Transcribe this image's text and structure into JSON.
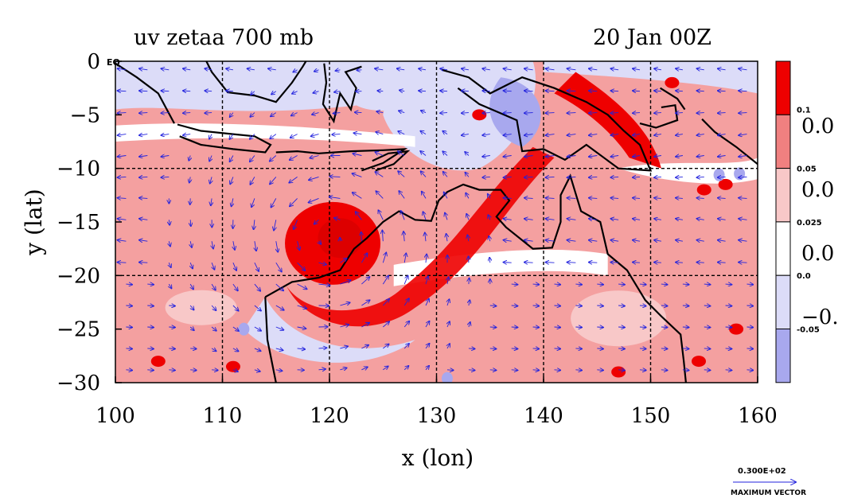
{
  "chart_data": {
    "type": "heatmap",
    "title": "uv zetaa 700 mb",
    "time_label": "20 Jan 00Z",
    "xlabel": "x (lon)",
    "ylabel": "y (lat)",
    "xlim": [
      100,
      160
    ],
    "ylim": [
      -30,
      0
    ],
    "x_ticks": [
      "100",
      "110",
      "120",
      "130",
      "140",
      "150",
      "160"
    ],
    "y_ticks": [
      "0",
      "−5",
      "−10",
      "−15",
      "−20",
      "−25",
      "−30"
    ],
    "corner_label": "EQ",
    "grid": true,
    "colorbar": {
      "levels": [
        "0.1",
        "0.05",
        "0.025",
        "0.0",
        "-0.05"
      ],
      "side_labels": [
        "0.0",
        "0.0",
        "0.0",
        "−0."
      ],
      "colors": [
        "#ee0000",
        "#f08080",
        "#f8c8c8",
        "#ffffff",
        "#dcdcf8",
        "#a8a8ee"
      ]
    },
    "vector_legend": {
      "magnitude": "0.300E+02",
      "label": "MAXIMUM VECTOR"
    },
    "features": {
      "cyclone_center_lon": 120,
      "cyclone_center_lat": -16.5,
      "vector_color": "#2222dd"
    }
  }
}
